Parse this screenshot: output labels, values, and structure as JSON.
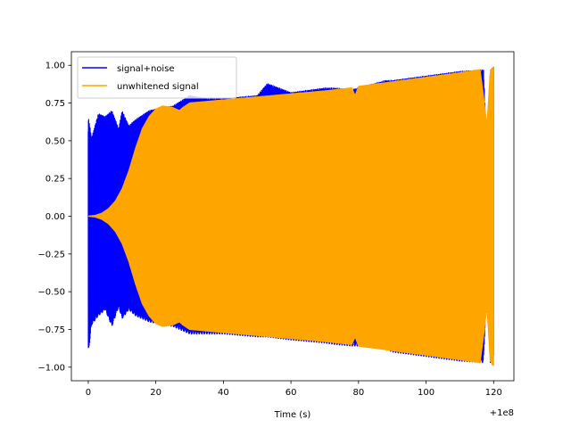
{
  "chart_data": {
    "type": "line",
    "xlabel": "Time (s)",
    "ylabel": "",
    "x_offset_label": "+1e8",
    "xlim": [
      -5,
      126
    ],
    "ylim": [
      -1.09,
      1.09
    ],
    "x_ticks": [
      0,
      20,
      40,
      60,
      80,
      100,
      120
    ],
    "y_ticks": [
      -1.0,
      -0.75,
      -0.5,
      -0.25,
      0.0,
      0.25,
      0.5,
      0.75,
      1.0
    ],
    "x_tick_labels": [
      "0",
      "20",
      "40",
      "60",
      "80",
      "100",
      "120"
    ],
    "y_tick_labels": [
      "−1.00",
      "−0.75",
      "−0.50",
      "−0.25",
      "0.00",
      "0.25",
      "0.50",
      "0.75",
      "1.00"
    ],
    "legend": {
      "placement": "upper-left"
    },
    "grid": false,
    "series": [
      {
        "name": "signal+noise",
        "color": "#0000ff",
        "envelope": {
          "x": [
            0,
            1,
            3,
            5,
            7,
            9,
            10,
            12,
            14,
            16,
            18,
            20,
            25,
            30,
            35,
            40,
            50,
            53,
            60,
            70,
            73,
            78,
            80,
            88,
            90,
            100,
            110,
            117,
            118,
            119,
            120
          ],
          "upper": [
            0.66,
            0.52,
            0.68,
            0.66,
            0.7,
            0.58,
            0.7,
            0.6,
            0.64,
            0.67,
            0.7,
            0.71,
            0.73,
            0.8,
            0.78,
            0.78,
            0.8,
            0.88,
            0.82,
            0.85,
            0.85,
            0.84,
            0.85,
            0.9,
            0.9,
            0.93,
            0.96,
            0.97,
            0.45,
            0.97,
            0.99
          ],
          "lower": [
            -0.91,
            -0.72,
            -0.66,
            -0.62,
            -0.73,
            -0.6,
            -0.68,
            -0.62,
            -0.66,
            -0.68,
            -0.7,
            -0.71,
            -0.73,
            -0.78,
            -0.78,
            -0.78,
            -0.8,
            -0.8,
            -0.82,
            -0.84,
            -0.85,
            -0.86,
            -0.86,
            -0.88,
            -0.9,
            -0.93,
            -0.96,
            -0.97,
            -0.45,
            -0.97,
            -0.99
          ]
        }
      },
      {
        "name": "unwhitened signal",
        "color": "#ffa500",
        "envelope": {
          "x": [
            0,
            2,
            4,
            6,
            8,
            10,
            12,
            14,
            16,
            18,
            20,
            22,
            25,
            27,
            28,
            30,
            40,
            50,
            60,
            70,
            78,
            79,
            80,
            90,
            100,
            110,
            116,
            117,
            118,
            119,
            120
          ],
          "upper": [
            0.0,
            0.005,
            0.02,
            0.05,
            0.1,
            0.18,
            0.3,
            0.45,
            0.58,
            0.66,
            0.71,
            0.73,
            0.72,
            0.7,
            0.72,
            0.75,
            0.77,
            0.79,
            0.81,
            0.83,
            0.85,
            0.8,
            0.86,
            0.89,
            0.92,
            0.95,
            0.97,
            0.8,
            0.6,
            0.96,
            0.99
          ],
          "lower": [
            0.0,
            -0.005,
            -0.02,
            -0.05,
            -0.1,
            -0.18,
            -0.3,
            -0.45,
            -0.58,
            -0.66,
            -0.71,
            -0.73,
            -0.72,
            -0.7,
            -0.72,
            -0.75,
            -0.77,
            -0.79,
            -0.81,
            -0.83,
            -0.85,
            -0.8,
            -0.86,
            -0.89,
            -0.92,
            -0.95,
            -0.97,
            -0.8,
            -0.6,
            -0.96,
            -0.99
          ]
        }
      }
    ]
  }
}
